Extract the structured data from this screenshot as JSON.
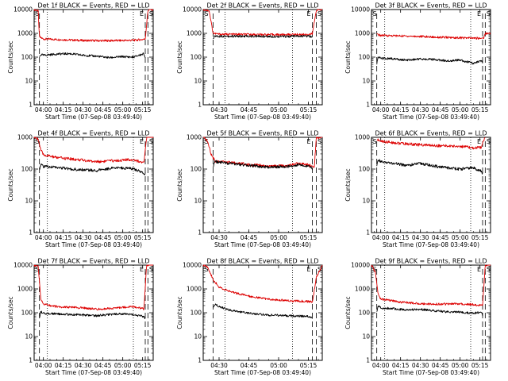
{
  "colors": {
    "events": "#000000",
    "lld": "#dd0000",
    "axes": "#000000",
    "background": "#ffffff"
  },
  "chart_data": [
    {
      "type": "line",
      "title": "Det 1f BLACK = Events, RED = LLD",
      "xlabel": "Start Time (07-Sep-08 03:49:40)",
      "ylabel": "Counts/sec",
      "yscale": "log",
      "ylim": [
        1,
        10000
      ],
      "xlim": [
        "03:53",
        "05:23"
      ],
      "xticks": [
        "04:00",
        "04:15",
        "04:30",
        "04:45",
        "05:00",
        "05:15"
      ],
      "yticks": [
        "1",
        "10",
        "100",
        "1000",
        "10000"
      ],
      "markers": {
        "start": "S",
        "end_a": "E",
        "end_b": "S"
      },
      "dashed_lines": [
        "03:57",
        "05:17",
        "05:19"
      ],
      "dotted_lines": [
        "04:03",
        "05:08"
      ],
      "series": [
        {
          "role": "lld",
          "time": [
            "03:53",
            "03:56",
            "03:57",
            "04:00",
            "04:15",
            "04:30",
            "04:45",
            "05:00",
            "05:10",
            "05:16",
            "05:17",
            "05:19",
            "05:20",
            "05:23"
          ],
          "values": [
            10000,
            9000,
            700,
            580,
            540,
            500,
            490,
            500,
            520,
            560,
            600,
            9000,
            10000,
            10000
          ]
        },
        {
          "role": "events",
          "time": [
            "03:57",
            "03:58",
            "04:00",
            "04:10",
            "04:20",
            "04:30",
            "04:40",
            "04:50",
            "05:00",
            "05:08",
            "05:16",
            "05:17"
          ],
          "values": [
            100,
            130,
            120,
            135,
            140,
            120,
            110,
            95,
            105,
            100,
            140,
            100
          ]
        }
      ]
    },
    {
      "type": "line",
      "title": "Det 2f BLACK = Events, RED = LLD",
      "xlabel": "Start Time (07-Sep-08 03:49:40)",
      "ylabel": "Counts/sec",
      "yscale": "log",
      "ylim": [
        1,
        10000
      ],
      "xlim": [
        "04:22",
        "05:22"
      ],
      "xticks": [
        "04:30",
        "04:45",
        "05:00",
        "05:15"
      ],
      "yticks": [
        "1",
        "10",
        "100",
        "1000",
        "10000"
      ],
      "markers": {
        "start": "S",
        "end_a": "E",
        "end_b": "S"
      },
      "dashed_lines": [
        "04:27",
        "05:17",
        "05:19"
      ],
      "dotted_lines": [
        "04:33",
        "05:07"
      ],
      "series": [
        {
          "role": "lld",
          "time": [
            "04:22",
            "04:25",
            "04:27",
            "04:30",
            "04:45",
            "05:00",
            "05:15",
            "05:17",
            "05:19",
            "05:22"
          ],
          "values": [
            10000,
            9000,
            1000,
            920,
            900,
            880,
            900,
            950,
            9500,
            10000
          ]
        },
        {
          "role": "events",
          "time": [
            "04:27",
            "04:28",
            "04:30",
            "04:45",
            "05:00",
            "05:15",
            "05:17"
          ],
          "values": [
            600,
            780,
            760,
            750,
            740,
            760,
            700
          ]
        }
      ]
    },
    {
      "type": "line",
      "title": "Det 3f BLACK = Events, RED = LLD",
      "xlabel": "Start Time (07-Sep-08 03:49:40)",
      "ylabel": "Counts/sec",
      "yscale": "log",
      "ylim": [
        1,
        10000
      ],
      "xlim": [
        "03:53",
        "05:23"
      ],
      "xticks": [
        "04:00",
        "04:15",
        "04:30",
        "04:45",
        "05:00",
        "05:15"
      ],
      "yticks": [
        "1",
        "10",
        "100",
        "1000",
        "10000"
      ],
      "markers": {
        "start": "S",
        "end_a": "E",
        "end_b": "S"
      },
      "dashed_lines": [
        "03:57",
        "05:17",
        "05:19"
      ],
      "dotted_lines": [
        "04:03",
        "05:08"
      ],
      "series": [
        {
          "role": "lld",
          "time": [
            "03:57",
            "04:00",
            "04:15",
            "04:30",
            "04:45",
            "05:00",
            "05:15",
            "05:18",
            "05:19",
            "05:23"
          ],
          "values": [
            900,
            820,
            780,
            740,
            680,
            650,
            620,
            650,
            1000,
            1000
          ]
        },
        {
          "role": "events",
          "time": [
            "03:57",
            "03:58",
            "04:00",
            "04:10",
            "04:20",
            "04:30",
            "04:40",
            "04:50",
            "05:00",
            "05:10",
            "05:16",
            "05:17"
          ],
          "values": [
            50,
            100,
            90,
            85,
            75,
            85,
            80,
            70,
            75,
            55,
            70,
            60
          ]
        }
      ]
    },
    {
      "type": "line",
      "title": "Det 4f BLACK = Events, RED = LLD",
      "xlabel": "Start Time (07-Sep-08 03:49:40)",
      "ylabel": "Counts/sec",
      "yscale": "log",
      "ylim": [
        1,
        1000
      ],
      "xlim": [
        "03:53",
        "05:23"
      ],
      "xticks": [
        "04:00",
        "04:15",
        "04:30",
        "04:45",
        "05:00",
        "05:15"
      ],
      "yticks": [
        "1",
        "10",
        "100",
        "1000"
      ],
      "markers": {
        "start": "S",
        "end_a": "E",
        "end_b": "S"
      },
      "dashed_lines": [
        "03:57",
        "05:17",
        "05:19"
      ],
      "dotted_lines": [
        "04:03",
        "05:08"
      ],
      "series": [
        {
          "role": "lld",
          "time": [
            "03:53",
            "03:56",
            "03:58",
            "04:00",
            "04:10",
            "04:20",
            "04:30",
            "04:40",
            "04:50",
            "05:00",
            "05:08",
            "05:15",
            "05:16",
            "05:18",
            "05:23"
          ],
          "values": [
            1000,
            900,
            400,
            280,
            230,
            210,
            190,
            170,
            180,
            190,
            200,
            160,
            150,
            1000,
            1000
          ]
        },
        {
          "role": "events",
          "time": [
            "03:57",
            "03:58",
            "04:00",
            "04:10",
            "04:20",
            "04:30",
            "04:40",
            "04:50",
            "05:00",
            "05:08",
            "05:15",
            "05:17"
          ],
          "values": [
            100,
            140,
            120,
            115,
            100,
            95,
            90,
            105,
            110,
            100,
            80,
            70
          ]
        }
      ]
    },
    {
      "type": "line",
      "title": "Det 5f BLACK = Events, RED = LLD",
      "xlabel": "Start Time (07-Sep-08 03:49:40)",
      "ylabel": "Counts/sec",
      "yscale": "log",
      "ylim": [
        1,
        1000
      ],
      "xlim": [
        "04:22",
        "05:22"
      ],
      "xticks": [
        "04:30",
        "04:45",
        "05:00",
        "05:15"
      ],
      "yticks": [
        "1",
        "10",
        "100",
        "1000"
      ],
      "markers": {
        "start": "S",
        "end_a": "E",
        "end_b": "S"
      },
      "dashed_lines": [
        "04:27",
        "05:17",
        "05:19"
      ],
      "dotted_lines": [
        "04:33",
        "05:07"
      ],
      "series": [
        {
          "role": "lld",
          "time": [
            "04:22",
            "04:24",
            "04:26",
            "04:28",
            "04:35",
            "04:45",
            "04:55",
            "05:05",
            "05:10",
            "05:16",
            "05:18",
            "05:19",
            "05:22"
          ],
          "values": [
            1000,
            800,
            300,
            180,
            160,
            140,
            120,
            130,
            150,
            130,
            120,
            1000,
            1000
          ]
        },
        {
          "role": "events",
          "time": [
            "04:27",
            "04:28",
            "04:35",
            "04:45",
            "04:55",
            "05:05",
            "05:10",
            "05:16",
            "05:17"
          ],
          "values": [
            120,
            170,
            150,
            130,
            115,
            120,
            135,
            120,
            100
          ]
        }
      ]
    },
    {
      "type": "line",
      "title": "Det 6f BLACK = Events, RED = LLD",
      "xlabel": "Start Time (07-Sep-08 03:49:40)",
      "ylabel": "Counts/sec",
      "yscale": "log",
      "ylim": [
        1,
        1000
      ],
      "xlim": [
        "03:53",
        "05:23"
      ],
      "xticks": [
        "04:00",
        "04:15",
        "04:30",
        "04:45",
        "05:00",
        "05:15"
      ],
      "yticks": [
        "1",
        "10",
        "100",
        "1000"
      ],
      "markers": {
        "start": "S",
        "end_a": "E",
        "end_b": "S"
      },
      "dashed_lines": [
        "03:57",
        "05:17",
        "05:19"
      ],
      "dotted_lines": [
        "04:03",
        "05:08"
      ],
      "series": [
        {
          "role": "lld",
          "time": [
            "03:57",
            "04:00",
            "04:15",
            "04:30",
            "04:45",
            "05:00",
            "05:10",
            "05:16",
            "05:17",
            "05:19"
          ],
          "values": [
            850,
            750,
            640,
            580,
            540,
            520,
            460,
            480,
            700,
            1000
          ]
        },
        {
          "role": "events",
          "time": [
            "03:57",
            "03:58",
            "04:00",
            "04:10",
            "04:20",
            "04:30",
            "04:40",
            "04:50",
            "05:00",
            "05:10",
            "05:16",
            "05:17"
          ],
          "values": [
            120,
            200,
            170,
            150,
            130,
            150,
            125,
            110,
            100,
            110,
            85,
            70
          ]
        }
      ]
    },
    {
      "type": "line",
      "title": "Det 7f BLACK = Events, RED = LLD",
      "xlabel": "Start Time (07-Sep-08 03:49:40)",
      "ylabel": "Counts/sec",
      "yscale": "log",
      "ylim": [
        1,
        10000
      ],
      "xlim": [
        "03:53",
        "05:23"
      ],
      "xticks": [
        "04:00",
        "04:15",
        "04:30",
        "04:45",
        "05:00",
        "05:15"
      ],
      "yticks": [
        "1",
        "10",
        "100",
        "1000",
        "10000"
      ],
      "markers": {
        "start": "S",
        "end_a": "E",
        "end_b": "S"
      },
      "dashed_lines": [
        "03:57",
        "05:17",
        "05:19"
      ],
      "dotted_lines": [
        "04:03",
        "05:08"
      ],
      "series": [
        {
          "role": "lld",
          "time": [
            "03:53",
            "03:56",
            "03:58",
            "04:00",
            "04:10",
            "04:20",
            "04:30",
            "04:40",
            "04:50",
            "05:00",
            "05:08",
            "05:15",
            "05:16",
            "05:18",
            "05:23"
          ],
          "values": [
            10000,
            9000,
            400,
            230,
            180,
            170,
            160,
            140,
            150,
            170,
            180,
            150,
            140,
            10000,
            10000
          ]
        },
        {
          "role": "events",
          "time": [
            "03:57",
            "03:58",
            "04:00",
            "04:10",
            "04:20",
            "04:30",
            "04:40",
            "04:50",
            "05:00",
            "05:08",
            "05:15",
            "05:17"
          ],
          "values": [
            60,
            110,
            95,
            90,
            85,
            80,
            75,
            85,
            90,
            85,
            70,
            60
          ]
        }
      ]
    },
    {
      "type": "line",
      "title": "Det 8f BLACK = Events, RED = LLD",
      "xlabel": "Start Time (07-Sep-08 03:49:40)",
      "ylabel": "Counts/sec",
      "yscale": "log",
      "ylim": [
        1,
        10000
      ],
      "xlim": [
        "04:22",
        "05:22"
      ],
      "xticks": [
        "04:30",
        "04:45",
        "05:00",
        "05:15"
      ],
      "yticks": [
        "1",
        "10",
        "100",
        "1000",
        "10000"
      ],
      "markers": {
        "start": "S",
        "end_a": "E",
        "end_b": "S"
      },
      "dashed_lines": [
        "04:27",
        "05:17",
        "05:19"
      ],
      "dotted_lines": [
        "04:33",
        "05:07"
      ],
      "series": [
        {
          "role": "lld",
          "time": [
            "04:22",
            "04:24",
            "04:27",
            "04:30",
            "04:35",
            "04:45",
            "04:55",
            "05:05",
            "05:15",
            "05:17",
            "05:19",
            "05:22"
          ],
          "values": [
            10000,
            9000,
            2500,
            1200,
            800,
            500,
            370,
            320,
            300,
            280,
            3000,
            10000
          ]
        },
        {
          "role": "events",
          "time": [
            "04:27",
            "04:28",
            "04:30",
            "04:35",
            "04:45",
            "04:55",
            "05:05",
            "05:15",
            "05:17"
          ],
          "values": [
            150,
            220,
            180,
            130,
            95,
            80,
            75,
            70,
            60
          ]
        }
      ]
    },
    {
      "type": "line",
      "title": "Det 9f BLACK = Events, RED = LLD",
      "xlabel": "Start Time (07-Sep-08 03:49:40)",
      "ylabel": "Counts/sec",
      "yscale": "log",
      "ylim": [
        1,
        10000
      ],
      "xlim": [
        "03:53",
        "05:23"
      ],
      "xticks": [
        "04:00",
        "04:15",
        "04:30",
        "04:45",
        "05:00",
        "05:15"
      ],
      "yticks": [
        "1",
        "10",
        "100",
        "1000",
        "10000"
      ],
      "markers": {
        "start": "S",
        "end_a": "E",
        "end_b": "S"
      },
      "dashed_lines": [
        "03:57",
        "05:17",
        "05:19"
      ],
      "dotted_lines": [
        "04:03",
        "05:08"
      ],
      "series": [
        {
          "role": "lld",
          "time": [
            "03:53",
            "03:56",
            "03:58",
            "04:00",
            "04:15",
            "04:30",
            "04:45",
            "05:00",
            "05:10",
            "05:15",
            "05:17",
            "05:19",
            "05:23"
          ],
          "values": [
            10000,
            5000,
            600,
            380,
            280,
            240,
            230,
            240,
            220,
            200,
            210,
            10000,
            10000
          ]
        },
        {
          "role": "events",
          "time": [
            "03:57",
            "03:58",
            "04:00",
            "04:10",
            "04:20",
            "04:30",
            "04:40",
            "04:50",
            "05:00",
            "05:10",
            "05:16",
            "05:17"
          ],
          "values": [
            100,
            200,
            160,
            150,
            130,
            140,
            120,
            110,
            105,
            95,
            110,
            80
          ]
        }
      ]
    }
  ]
}
